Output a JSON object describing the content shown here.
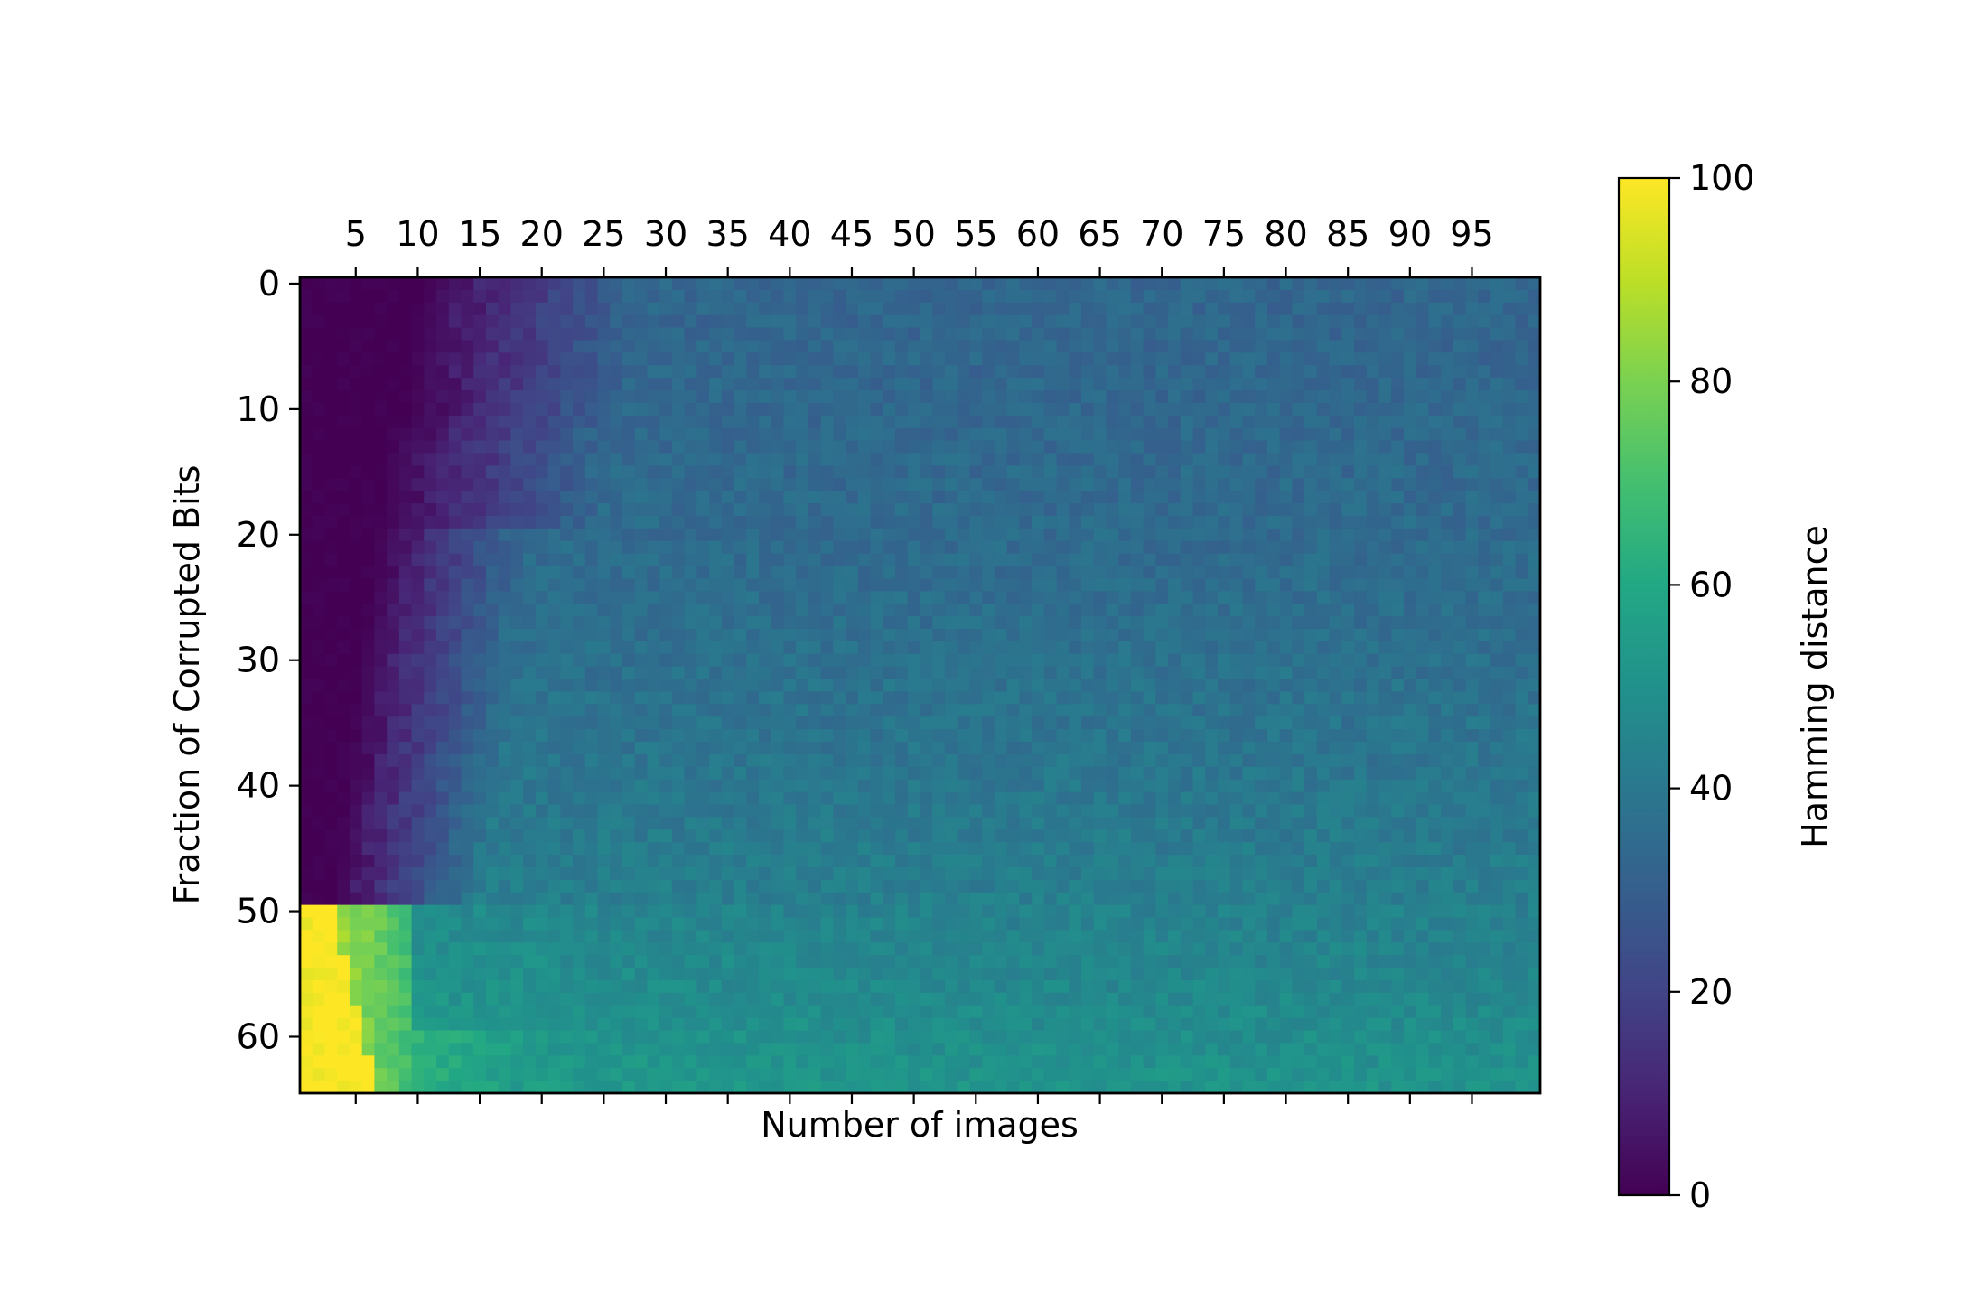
{
  "chart_data": {
    "type": "heatmap",
    "title": "",
    "xlabel": "Number of images",
    "ylabel": "Fraction of Corrupted Bits",
    "x_range": [
      1,
      100
    ],
    "y_range": [
      0,
      64
    ],
    "x_ticks": [
      "5",
      "10",
      "15",
      "20",
      "25",
      "30",
      "35",
      "40",
      "45",
      "50",
      "55",
      "60",
      "65",
      "70",
      "75",
      "80",
      "85",
      "90",
      "95"
    ],
    "x_tick_values": [
      5,
      10,
      15,
      20,
      25,
      30,
      35,
      40,
      45,
      50,
      55,
      60,
      65,
      70,
      75,
      80,
      85,
      90,
      95
    ],
    "y_ticks": [
      "0",
      "10",
      "20",
      "30",
      "40",
      "50",
      "60"
    ],
    "y_tick_values": [
      0,
      10,
      20,
      30,
      40,
      50,
      60
    ],
    "x_axis_position": "top",
    "y_axis_inverted": true,
    "grid": false,
    "colormap": "viridis",
    "colorbar": {
      "label": "Hamming distance",
      "ticks": [
        "0",
        "20",
        "40",
        "60",
        "80",
        "100"
      ],
      "tick_values": [
        0,
        20,
        40,
        60,
        80,
        100
      ],
      "range": [
        0,
        100
      ],
      "position": "right"
    },
    "description_of_values": {
      "low_image_count_low_corruption": 0,
      "plateau_upper_region": 33,
      "plateau_middle_region": 42,
      "bottom_region_large_images": 52,
      "bottom_left_corner_high_corruption_few_images": 100,
      "row_50_to_64_few_images": 70
    }
  }
}
